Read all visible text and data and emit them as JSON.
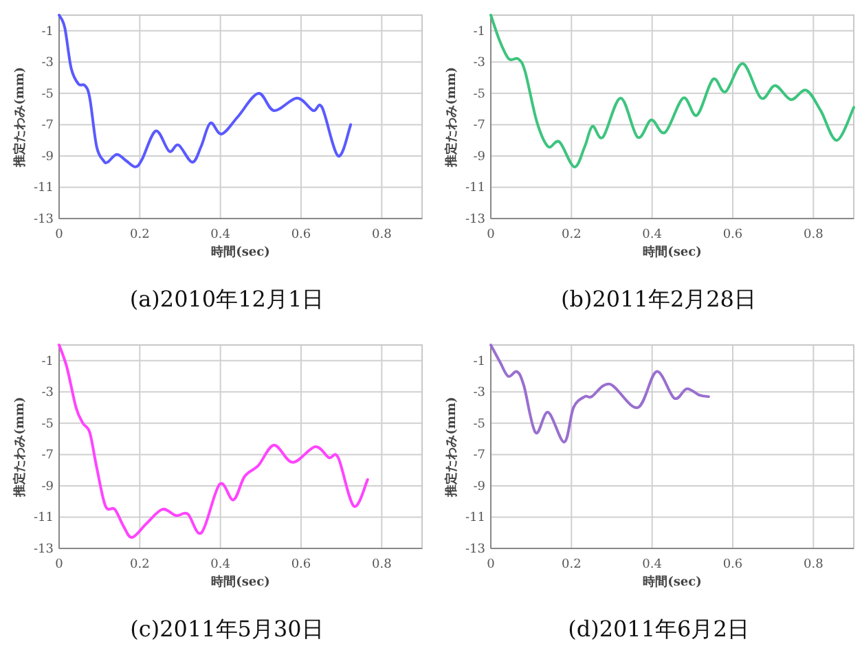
{
  "chart_data": [
    {
      "type": "line",
      "title": "(a)2010年12月1日",
      "xlabel": "時間(sec)",
      "ylabel": "推定たわみ(mm)",
      "xlim": [
        0,
        0.9
      ],
      "ylim": [
        -13,
        0
      ],
      "xticks": [
        0,
        0.2,
        0.4,
        0.6,
        0.8
      ],
      "yticks": [
        -1,
        -3,
        -5,
        -7,
        -9,
        -11,
        -13
      ],
      "grid": true,
      "line_style": "solid",
      "x": [
        0,
        0.014,
        0.03,
        0.048,
        0.064,
        0.076,
        0.093,
        0.11,
        0.12,
        0.143,
        0.166,
        0.189,
        0.206,
        0.24,
        0.273,
        0.296,
        0.33,
        0.352,
        0.375,
        0.403,
        0.443,
        0.494,
        0.533,
        0.59,
        0.63,
        0.652,
        0.692,
        0.723
      ],
      "series": [
        {
          "color": "#5a5aff",
          "values": [
            0,
            -0.8,
            -3.4,
            -4.4,
            -4.5,
            -5.3,
            -8.4,
            -9.3,
            -9.4,
            -8.9,
            -9.3,
            -9.7,
            -9.2,
            -7.4,
            -8.7,
            -8.3,
            -9.4,
            -8.4,
            -6.9,
            -7.6,
            -6.5,
            -5.0,
            -6.1,
            -5.3,
            -6.1,
            -5.9,
            -9.0,
            -7.0
          ]
        }
      ]
    },
    {
      "type": "line",
      "title": "(b)2011年2月28日",
      "xlabel": "時間(sec)",
      "ylabel": "推定たわみ(mm)",
      "xlim": [
        0,
        0.9
      ],
      "ylim": [
        -13,
        0
      ],
      "xticks": [
        0,
        0.2,
        0.4,
        0.6,
        0.8
      ],
      "yticks": [
        -1,
        -3,
        -5,
        -7,
        -9,
        -11,
        -13
      ],
      "grid": true,
      "line_style": "solid",
      "x": [
        0,
        0.023,
        0.045,
        0.068,
        0.085,
        0.114,
        0.142,
        0.17,
        0.207,
        0.233,
        0.252,
        0.278,
        0.322,
        0.364,
        0.398,
        0.432,
        0.477,
        0.511,
        0.551,
        0.582,
        0.625,
        0.67,
        0.705,
        0.744,
        0.782,
        0.818,
        0.858,
        0.9
      ],
      "series": [
        {
          "color": "#3dc47e",
          "values": [
            0,
            -1.7,
            -2.8,
            -2.8,
            -3.6,
            -6.8,
            -8.4,
            -8.1,
            -9.7,
            -8.4,
            -7.1,
            -7.8,
            -5.3,
            -7.8,
            -6.7,
            -7.5,
            -5.3,
            -6.4,
            -4.1,
            -4.9,
            -3.1,
            -5.3,
            -4.5,
            -5.4,
            -4.8,
            -6.1,
            -8.0,
            -5.9
          ]
        }
      ]
    },
    {
      "type": "line",
      "title": "(c)2011年5月30日",
      "xlabel": "時間(sec)",
      "ylabel": "推定たわみ(mm)",
      "xlim": [
        0,
        0.9
      ],
      "ylim": [
        -13,
        0
      ],
      "xticks": [
        0,
        0.2,
        0.4,
        0.6,
        0.8
      ],
      "yticks": [
        -1,
        -3,
        -5,
        -7,
        -9,
        -11,
        -13
      ],
      "grid": true,
      "line_style": "solid",
      "x": [
        0,
        0.019,
        0.042,
        0.059,
        0.076,
        0.093,
        0.115,
        0.138,
        0.16,
        0.181,
        0.217,
        0.256,
        0.29,
        0.319,
        0.353,
        0.398,
        0.432,
        0.46,
        0.494,
        0.533,
        0.579,
        0.635,
        0.669,
        0.692,
        0.731,
        0.765
      ],
      "series": [
        {
          "color": "#ff44ff",
          "values": [
            0,
            -1.4,
            -4.0,
            -5.0,
            -5.6,
            -7.8,
            -10.3,
            -10.5,
            -11.6,
            -12.3,
            -11.4,
            -10.5,
            -10.9,
            -10.8,
            -12.0,
            -8.9,
            -9.9,
            -8.4,
            -7.7,
            -6.4,
            -7.5,
            -6.5,
            -7.2,
            -7.2,
            -10.3,
            -8.6
          ]
        }
      ]
    },
    {
      "type": "line",
      "title": "(d)2011年6月2日",
      "xlabel": "時間(sec)",
      "ylabel": "推定たわみ(mm)",
      "xlim": [
        0,
        0.9
      ],
      "ylim": [
        -13,
        0
      ],
      "xticks": [
        0,
        0.2,
        0.4,
        0.6,
        0.8
      ],
      "yticks": [
        -1,
        -3,
        -5,
        -7,
        -9,
        -11,
        -13
      ],
      "grid": true,
      "line_style": "solid",
      "x": [
        0,
        0.023,
        0.043,
        0.065,
        0.082,
        0.111,
        0.142,
        0.182,
        0.205,
        0.233,
        0.25,
        0.295,
        0.364,
        0.411,
        0.455,
        0.486,
        0.517,
        0.54
      ],
      "series": [
        {
          "color": "#9a6fcf",
          "values": [
            0,
            -1.1,
            -2.0,
            -1.7,
            -2.6,
            -5.6,
            -4.3,
            -6.2,
            -4.0,
            -3.3,
            -3.3,
            -2.5,
            -4.0,
            -1.7,
            -3.4,
            -2.8,
            -3.2,
            -3.3
          ]
        }
      ]
    }
  ]
}
